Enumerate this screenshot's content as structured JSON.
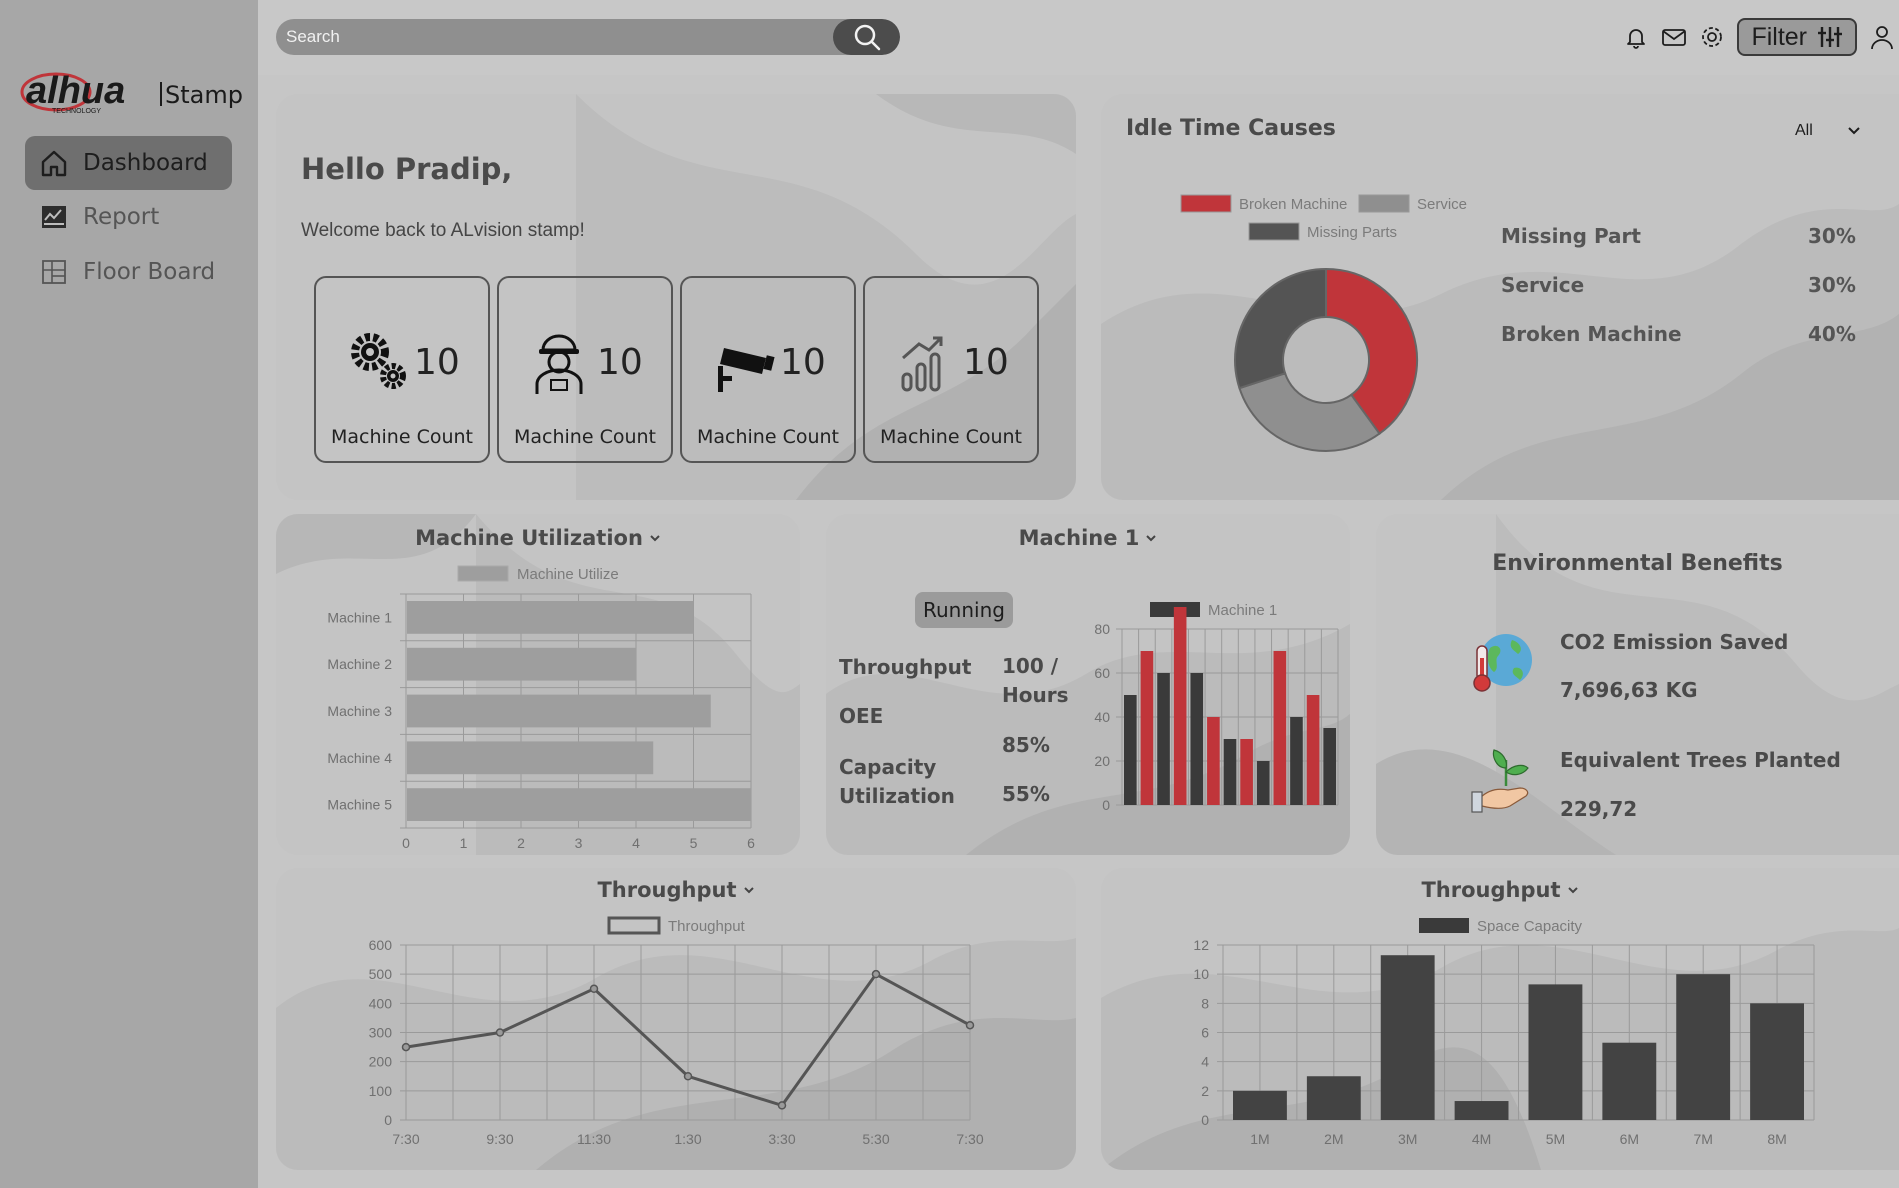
{
  "brand": {
    "logo_text": "alhua",
    "logo_sub": "TECHNOLOGY",
    "product": "Stamp"
  },
  "sidebar": {
    "items": [
      {
        "label": "Dashboard",
        "icon": "home-icon",
        "active": true
      },
      {
        "label": "Report",
        "icon": "report-icon",
        "active": false
      },
      {
        "label": "Floor Board",
        "icon": "floor-board-icon",
        "active": false
      }
    ]
  },
  "topbar": {
    "search_placeholder": "Search",
    "filter_label": "Filter"
  },
  "welcome": {
    "greeting": "Hello Pradip,",
    "message": "Welcome back to ALvision stamp!",
    "counts": [
      {
        "icon": "gears-icon",
        "value": "10",
        "label": "Machine Count"
      },
      {
        "icon": "worker-icon",
        "value": "10",
        "label": "Machine Count"
      },
      {
        "icon": "camera-icon",
        "value": "10",
        "label": "Machine Count"
      },
      {
        "icon": "signal-icon",
        "value": "10",
        "label": "Machine Count"
      }
    ]
  },
  "idle": {
    "title": "Idle Time Causes",
    "filter_value": "All",
    "legend": [
      "Broken Machine",
      "Service",
      "Missing Parts"
    ],
    "stats": [
      {
        "label": "Missing Part",
        "value": "30%"
      },
      {
        "label": "Service",
        "value": "30%"
      },
      {
        "label": "Broken Machine",
        "value": "40%"
      }
    ]
  },
  "utilization": {
    "title": "Machine Utilization"
  },
  "machine1": {
    "title": "Machine 1",
    "status": "Running",
    "throughput_label": "Throughput",
    "throughput_value": "100 / Hours",
    "oee_label": "OEE",
    "oee_value": "85%",
    "capacity_label": "Capacity Utilization",
    "capacity_value": "55%"
  },
  "environment": {
    "title": "Environmental Benefits",
    "co2_label": "CO2 Emission Saved",
    "co2_value": "7,696,63 KG",
    "trees_label": "Equivalent Trees Planted",
    "trees_value": "229,72"
  },
  "throughput_line": {
    "title": "Throughput"
  },
  "throughput_bar": {
    "title": "Throughput"
  },
  "colors": {
    "red": "#c0353a",
    "dark": "#474747",
    "mid": "#8a8a8a",
    "bar_grey": "#9e9e9e"
  },
  "chart_data": [
    {
      "id": "idle",
      "type": "pie",
      "title": "Idle Time Causes",
      "labels": [
        "Broken Machine",
        "Service",
        "Missing Parts"
      ],
      "values": [
        40,
        30,
        30
      ],
      "colors": [
        "#c0353a",
        "#8f8f8f",
        "#545454"
      ]
    },
    {
      "id": "util",
      "type": "bar",
      "orientation": "horizontal",
      "title": "Machine Utilization",
      "series": [
        {
          "name": "Machine Utilize",
          "values": [
            5,
            4,
            5.3,
            4.3,
            6
          ]
        }
      ],
      "categories": [
        "Machine 1",
        "Machine 2",
        "Machine 3",
        "Machine 4",
        "Machine 5"
      ],
      "xlim": [
        0,
        6
      ],
      "xticks": [
        0,
        1,
        2,
        3,
        4,
        5,
        6
      ]
    },
    {
      "id": "m1",
      "type": "bar",
      "title": "Machine 1",
      "series": [
        {
          "name": "Machine 1",
          "values": [
            50,
            70,
            60,
            90,
            60,
            40,
            30,
            30,
            20,
            70,
            40,
            50,
            35
          ]
        }
      ],
      "bar_colors": [
        "#3a3a3a",
        "#c0353a",
        "#3a3a3a",
        "#c0353a",
        "#3a3a3a",
        "#c0353a",
        "#3a3a3a",
        "#c0353a",
        "#3a3a3a",
        "#c0353a",
        "#3a3a3a",
        "#c0353a",
        "#3a3a3a"
      ],
      "ylim": [
        0,
        80
      ],
      "yticks": [
        0,
        20,
        40,
        60,
        80
      ]
    },
    {
      "id": "tline",
      "type": "line",
      "title": "Throughput",
      "categories": [
        "7:30",
        "9:30",
        "11:30",
        "1:30",
        "3:30",
        "5:30",
        "7:30"
      ],
      "series": [
        {
          "name": "Throughput",
          "x": [
            0,
            1,
            2,
            3,
            4,
            5,
            6
          ],
          "values": [
            250,
            300,
            450,
            150,
            50,
            500,
            325
          ]
        }
      ],
      "ylim": [
        0,
        600
      ],
      "yticks": [
        0,
        100,
        200,
        300,
        400,
        500,
        600
      ]
    },
    {
      "id": "tbar",
      "type": "bar",
      "title": "Throughput",
      "categories": [
        "1M",
        "2M",
        "3M",
        "4M",
        "5M",
        "6M",
        "7M",
        "8M"
      ],
      "series": [
        {
          "name": "Space Capacity",
          "values": [
            2,
            3,
            11.3,
            1.3,
            9.3,
            5.3,
            10,
            8
          ]
        }
      ],
      "ylim": [
        0,
        12
      ],
      "yticks": [
        0,
        2,
        4,
        6,
        8,
        10,
        12
      ]
    }
  ]
}
